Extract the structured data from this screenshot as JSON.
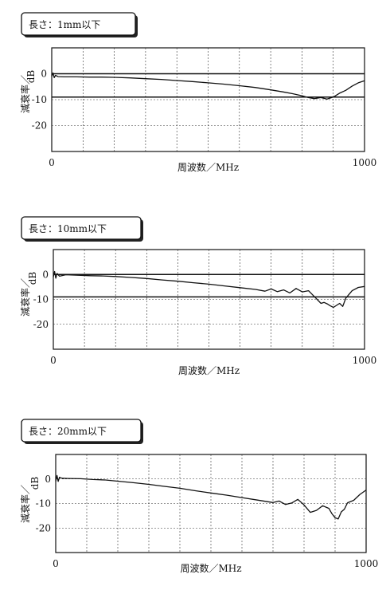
{
  "chart_data": [
    {
      "type": "line",
      "tag": "長さ：1mm以下",
      "xlabel": "周波数／MHz",
      "ylabel": "減衰率／",
      "yunit": "dB",
      "xlim": [
        0,
        1000
      ],
      "ylim": [
        -30,
        10
      ],
      "yticks": [
        0,
        -10,
        -20
      ],
      "xtick_labels": [
        "0",
        "1000"
      ],
      "grid": true,
      "reference_lines": [
        0,
        -9
      ],
      "series": [
        {
          "x": [
            0,
            4,
            8,
            12,
            20,
            40,
            80,
            120,
            160,
            200,
            250,
            300,
            350,
            400,
            450,
            500,
            550,
            600,
            650,
            700,
            740,
            770,
            800,
            820,
            840,
            860,
            880,
            900,
            920,
            940,
            960,
            980,
            1000
          ],
          "y": [
            -1,
            0.3,
            -1.5,
            -0.6,
            -1.1,
            -1.2,
            -1.2,
            -1.3,
            -1.3,
            -1.4,
            -1.6,
            -1.9,
            -2.2,
            -2.6,
            -3.0,
            -3.5,
            -4.0,
            -4.6,
            -5.3,
            -6.2,
            -7.0,
            -7.7,
            -8.5,
            -9.2,
            -9.6,
            -9.2,
            -9.8,
            -9.0,
            -7.5,
            -6.4,
            -4.8,
            -3.5,
            -2.7
          ]
        }
      ]
    },
    {
      "type": "line",
      "tag": "長さ：10mm以下",
      "xlabel": "周波数／MHz",
      "ylabel": "減衰率／",
      "yunit": "dB",
      "xlim": [
        0,
        1000
      ],
      "ylim": [
        -30,
        10
      ],
      "yticks": [
        0,
        -10,
        -20
      ],
      "xtick_labels": [
        "0",
        "1000"
      ],
      "grid": true,
      "reference_lines": [
        0,
        -9
      ],
      "series": [
        {
          "x": [
            0,
            4,
            8,
            12,
            20,
            40,
            80,
            120,
            160,
            200,
            250,
            300,
            350,
            400,
            450,
            500,
            550,
            600,
            650,
            680,
            700,
            720,
            740,
            760,
            780,
            800,
            820,
            840,
            860,
            870,
            880,
            890,
            900,
            910,
            920,
            930,
            940,
            960,
            980,
            1000
          ],
          "y": [
            -1,
            1.2,
            -1.5,
            0.4,
            -0.7,
            -0.1,
            -0.3,
            -0.5,
            -0.6,
            -0.8,
            -1.2,
            -1.6,
            -2.2,
            -2.7,
            -3.3,
            -3.9,
            -4.6,
            -5.3,
            -6.0,
            -6.7,
            -5.8,
            -6.9,
            -6.2,
            -7.4,
            -5.6,
            -7.0,
            -6.5,
            -9.0,
            -11.6,
            -11.2,
            -11.8,
            -12.6,
            -13.2,
            -12.4,
            -11.6,
            -12.8,
            -9.5,
            -6.5,
            -5.2,
            -4.8
          ]
        }
      ]
    },
    {
      "type": "line",
      "tag": "長さ：20mm以下",
      "xlabel": "周波数／MHz",
      "ylabel": "減衰率／",
      "yunit": "dB",
      "xlim": [
        0,
        1000
      ],
      "ylim": [
        -30,
        10
      ],
      "yticks": [
        0,
        -10,
        -20
      ],
      "xtick_labels": [
        "0",
        "1000"
      ],
      "grid": true,
      "reference_lines": [],
      "series": [
        {
          "x": [
            0,
            4,
            8,
            12,
            20,
            40,
            80,
            120,
            160,
            200,
            250,
            300,
            350,
            400,
            450,
            500,
            550,
            600,
            650,
            700,
            720,
            740,
            760,
            780,
            800,
            820,
            840,
            860,
            880,
            890,
            900,
            910,
            920,
            930,
            940,
            960,
            980,
            1000
          ],
          "y": [
            -1,
            1.4,
            -1.0,
            0.7,
            0.3,
            0.2,
            0.1,
            -0.2,
            -0.4,
            -0.9,
            -1.5,
            -2.2,
            -3.0,
            -3.8,
            -4.8,
            -5.7,
            -6.6,
            -7.6,
            -8.6,
            -9.6,
            -9.0,
            -10.4,
            -9.8,
            -8.3,
            -10.6,
            -13.6,
            -12.8,
            -10.9,
            -12.0,
            -14.2,
            -15.8,
            -16.3,
            -13.4,
            -12.3,
            -9.7,
            -8.7,
            -6.3,
            -4.5
          ]
        }
      ]
    }
  ]
}
